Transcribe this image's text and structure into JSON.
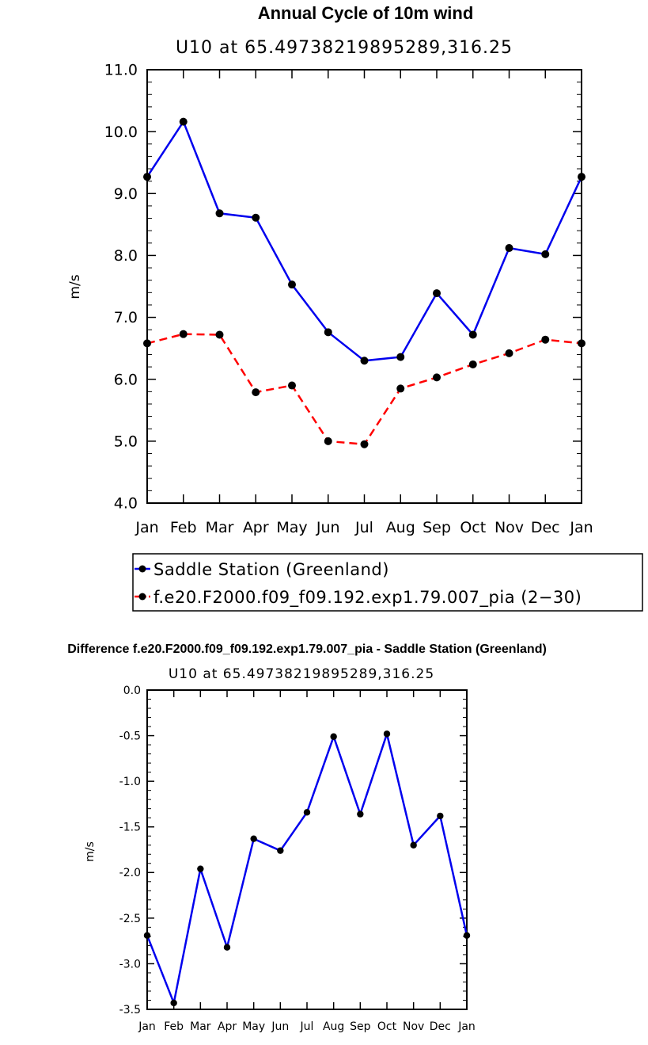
{
  "chart_data": [
    {
      "type": "line",
      "title": "Annual Cycle of 10m wind",
      "subtitle": "U10  at  65.49738219895289,316.25",
      "xlabel": "",
      "ylabel": "m/s",
      "categories": [
        "Jan",
        "Feb",
        "Mar",
        "Apr",
        "May",
        "Jun",
        "Jul",
        "Aug",
        "Sep",
        "Oct",
        "Nov",
        "Dec",
        "Jan"
      ],
      "ylim": [
        4.0,
        11.0
      ],
      "yticks": [
        4.0,
        5.0,
        6.0,
        7.0,
        8.0,
        9.0,
        10.0,
        11.0
      ],
      "ytick_labels": [
        "4.0",
        "5.0",
        "6.0",
        "7.0",
        "8.0",
        "9.0",
        "10.0",
        "11.0"
      ],
      "grid": false,
      "legend_position": "bottom",
      "series": [
        {
          "name": "Saddle Station (Greenland)",
          "color": "#0000ee",
          "dash": "solid",
          "values": [
            9.27,
            10.16,
            8.68,
            8.61,
            7.53,
            6.76,
            6.3,
            6.36,
            7.39,
            6.72,
            8.12,
            8.02,
            9.27
          ]
        },
        {
          "name": "f.e20.F2000.f09_f09.192.exp1.79.007_pia (2−30)",
          "color": "#ff0000",
          "dash": "dashed",
          "values": [
            6.58,
            6.73,
            6.72,
            5.79,
            5.9,
            5.0,
            4.95,
            5.85,
            6.03,
            6.24,
            6.42,
            6.64,
            6.58
          ]
        }
      ]
    },
    {
      "type": "line",
      "title": "Difference f.e20.F2000.f09_f09.192.exp1.79.007_pia - Saddle Station (Greenland)",
      "subtitle": "U10  at  65.49738219895289,316.25",
      "xlabel": "",
      "ylabel": "m/s",
      "categories": [
        "Jan",
        "Feb",
        "Mar",
        "Apr",
        "May",
        "Jun",
        "Jul",
        "Aug",
        "Sep",
        "Oct",
        "Nov",
        "Dec",
        "Jan"
      ],
      "ylim": [
        -3.5,
        0.0
      ],
      "yticks": [
        -3.5,
        -3.0,
        -2.5,
        -2.0,
        -1.5,
        -1.0,
        -0.5,
        0.0
      ],
      "ytick_labels": [
        "-3.5",
        "-3.0",
        "-2.5",
        "-2.0",
        "-1.5",
        "-1.0",
        "-0.5",
        "0.0"
      ],
      "grid": false,
      "series": [
        {
          "name": "Difference",
          "color": "#0000ee",
          "dash": "solid",
          "values": [
            -2.69,
            -3.43,
            -1.96,
            -2.82,
            -1.63,
            -1.76,
            -1.34,
            -0.51,
            -1.36,
            -0.48,
            -1.7,
            -1.38,
            -2.69
          ]
        }
      ]
    }
  ]
}
